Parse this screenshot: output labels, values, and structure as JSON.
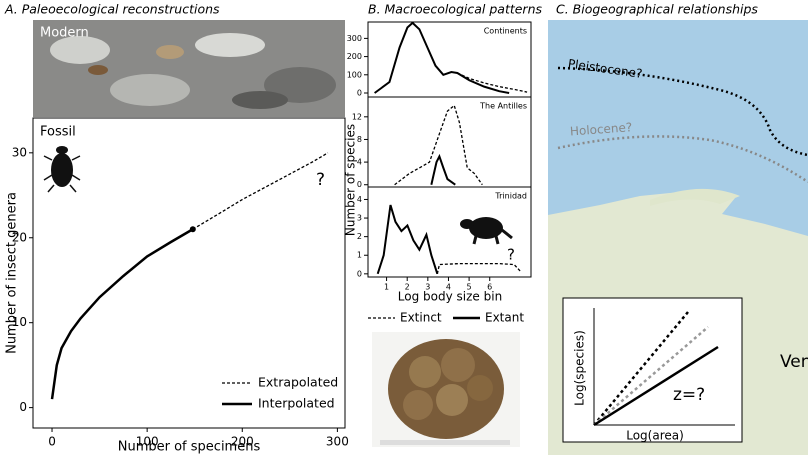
{
  "panels": {
    "a_title": "A. Paleoecological reconstructions",
    "b_title": "B. Macroecological patterns",
    "c_title": "C. Biogeographical relationships"
  },
  "labels": {
    "modern": "Modern",
    "fossil": "Fossil",
    "map_pleistocene": "Pleistocene?",
    "map_holocene": "Holocene?",
    "map_place": "Ven",
    "inset_y": "Log(species)",
    "inset_x": "Log(area)",
    "inset_z": "z=?"
  },
  "chart_data": [
    {
      "type": "line",
      "xlabel": "Number of specimens",
      "ylabel": "Number of insect genera",
      "annotation": "?",
      "xlim": [
        -20,
        308
      ],
      "ylim": [
        -2.4,
        34.1
      ],
      "xticks": [
        0,
        100,
        200,
        300
      ],
      "yticks": [
        0,
        10,
        20,
        30
      ],
      "legend": "lower right",
      "series": [
        {
          "name": "Extrapolated",
          "color": "#000000",
          "dashed": true,
          "x": [
            148,
            175,
            200,
            225,
            250,
            275,
            290
          ],
          "values": [
            21,
            22.8,
            24.5,
            26,
            27.5,
            29,
            30
          ]
        },
        {
          "name": "Interpolated",
          "color": "#000000",
          "dashed": false,
          "marker_last": true,
          "x": [
            0,
            5,
            10,
            20,
            30,
            50,
            75,
            100,
            125,
            148
          ],
          "values": [
            1,
            5,
            7,
            9,
            10.5,
            13,
            15.5,
            17.8,
            19.5,
            21
          ]
        }
      ]
    },
    {
      "type": "line",
      "title": "Continents",
      "xlim": [
        0.1,
        8
      ],
      "ylim": [
        -22,
        390
      ],
      "yticks": [
        0,
        100,
        200,
        300
      ],
      "series": [
        {
          "color": "#000000",
          "dashed": true,
          "x": [
            4.43,
            5.01,
            5.73,
            6.46,
            7.18,
            7.81
          ],
          "values": [
            110,
            80,
            55,
            35,
            20,
            5
          ]
        },
        {
          "color": "#000000",
          "dashed": false,
          "x": [
            0.42,
            1.14,
            1.63,
            2.01,
            2.26,
            2.59,
            2.98,
            3.37,
            3.75,
            4.14,
            4.43,
            5.01,
            5.73,
            6.46,
            6.94
          ],
          "values": [
            0,
            60,
            250,
            360,
            385,
            350,
            250,
            150,
            100,
            115,
            110,
            70,
            35,
            10,
            0
          ]
        }
      ]
    },
    {
      "type": "line",
      "title": "The Antilles",
      "xlim": [
        0.1,
        8
      ],
      "ylim": [
        -0.4,
        15.5
      ],
      "yticks": [
        0,
        4,
        8,
        12
      ],
      "series": [
        {
          "color": "#000000",
          "dashed": true,
          "x": [
            1.39,
            2.11,
            2.6,
            3.08,
            3.56,
            3.95,
            4.28,
            4.53,
            4.91,
            5.25,
            5.64
          ],
          "values": [
            0,
            2,
            3,
            4,
            9,
            13,
            14,
            11,
            3,
            2,
            0
          ]
        },
        {
          "color": "#000000",
          "dashed": false,
          "x": [
            3.17,
            3.42,
            3.56,
            3.75,
            3.95,
            4.33
          ],
          "values": [
            0,
            4,
            5,
            3,
            1,
            0
          ]
        }
      ]
    },
    {
      "type": "line",
      "title": "Trinidad",
      "annotation": "?",
      "xlabel": "Log body size bin",
      "ylabel": "Number of species",
      "xlim": [
        0.1,
        8
      ],
      "ylim": [
        -0.17,
        4.67
      ],
      "xticks": [
        1,
        2,
        3,
        4,
        5,
        6
      ],
      "yticks": [
        0,
        1,
        2,
        3,
        4
      ],
      "series": [
        {
          "name": "Extinct",
          "color": "#000000",
          "dashed": true,
          "x": [
            3.46,
            3.56,
            4.53,
            6.46,
            7.18,
            7.52
          ],
          "values": [
            0,
            0.5,
            0.55,
            0.55,
            0.5,
            0.1
          ]
        },
        {
          "name": "Extant",
          "color": "#000000",
          "dashed": false,
          "x": [
            0.57,
            0.86,
            1.19,
            1.43,
            1.72,
            2.01,
            2.3,
            2.59,
            2.93,
            3.17,
            3.46
          ],
          "values": [
            0,
            1,
            3.7,
            2.8,
            2.3,
            2.6,
            1.8,
            1.3,
            2.1,
            1.0,
            0
          ]
        }
      ]
    }
  ]
}
